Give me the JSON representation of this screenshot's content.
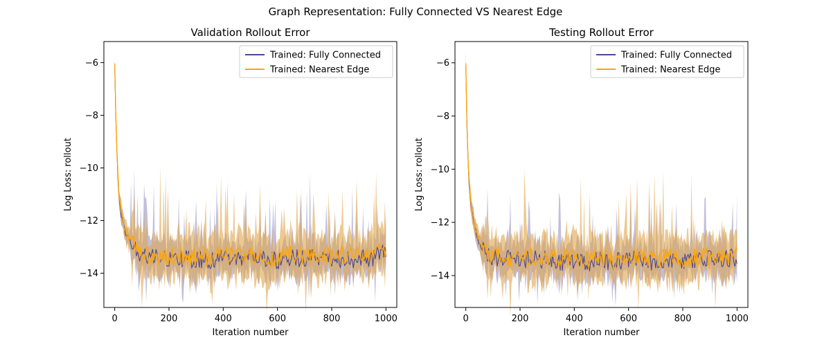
{
  "suptitle": "Graph Representation: Fully Connected VS Nearest Edge",
  "colors": {
    "fully_connected": "#4b4891",
    "nearest_edge": "#ffa500",
    "band_fully_connected": "#8c8ac2",
    "band_nearest_edge": "#e0a54a",
    "band_overlap": "#cd9d6a"
  },
  "chart_data": [
    {
      "type": "line",
      "title": "Validation Rollout Error",
      "xlabel": "Iteration number",
      "ylabel": "Log Loss: rollout",
      "xlim": [
        -40,
        1040
      ],
      "ylim": [
        -15.3,
        -5.2
      ],
      "xticks": [
        0,
        200,
        400,
        600,
        800,
        1000
      ],
      "yticks": [
        -14,
        -12,
        -10,
        -8,
        -6
      ],
      "grid": false,
      "legend": "top-right",
      "series": [
        {
          "name": "Trained: Fully Connected",
          "x": [
            0,
            5,
            10,
            15,
            20,
            30,
            40,
            50,
            60,
            80,
            100,
            120,
            140,
            160,
            180,
            200,
            250,
            300,
            350,
            400,
            450,
            500,
            550,
            600,
            650,
            700,
            750,
            800,
            850,
            900,
            950,
            1000
          ],
          "mean": [
            -6.2,
            -8.6,
            -10.0,
            -11.0,
            -11.5,
            -12.1,
            -12.5,
            -12.7,
            -12.9,
            -13.1,
            -13.3,
            -13.3,
            -13.4,
            -13.4,
            -13.4,
            -13.5,
            -13.4,
            -13.5,
            -13.5,
            -13.4,
            -13.5,
            -13.4,
            -13.5,
            -13.5,
            -13.4,
            -13.5,
            -13.4,
            -13.5,
            -13.4,
            -13.5,
            -13.4,
            -13.2
          ],
          "band_spread": 0.6
        },
        {
          "name": "Trained: Nearest Edge",
          "x": [
            0,
            5,
            10,
            15,
            20,
            30,
            40,
            50,
            60,
            80,
            100,
            120,
            140,
            160,
            180,
            200,
            250,
            300,
            350,
            400,
            450,
            500,
            550,
            600,
            650,
            700,
            750,
            800,
            850,
            900,
            950,
            1000
          ],
          "mean": [
            -6.1,
            -8.5,
            -9.9,
            -10.9,
            -11.4,
            -12.0,
            -12.4,
            -12.6,
            -12.8,
            -13.0,
            -13.2,
            -13.3,
            -13.3,
            -13.4,
            -13.4,
            -13.4,
            -13.4,
            -13.4,
            -13.4,
            -13.3,
            -13.4,
            -13.3,
            -13.4,
            -13.4,
            -13.3,
            -13.4,
            -13.3,
            -13.4,
            -13.3,
            -13.4,
            -13.3,
            -13.1
          ],
          "band_spread": 0.8
        }
      ]
    },
    {
      "type": "line",
      "title": "Testing Rollout Error",
      "xlabel": "Iteration number",
      "ylabel": "Log Loss: rollout",
      "xlim": [
        -40,
        1040
      ],
      "ylim": [
        -15.2,
        -5.2
      ],
      "xticks": [
        0,
        200,
        400,
        600,
        800,
        1000
      ],
      "yticks": [
        -14,
        -12,
        -10,
        -8,
        -6
      ],
      "grid": false,
      "legend": "top-right",
      "series": [
        {
          "name": "Trained: Fully Connected",
          "x": [
            0,
            5,
            10,
            15,
            20,
            30,
            40,
            50,
            60,
            80,
            100,
            120,
            140,
            160,
            180,
            200,
            250,
            300,
            350,
            400,
            450,
            500,
            550,
            600,
            650,
            700,
            750,
            800,
            850,
            900,
            950,
            1000
          ],
          "mean": [
            -6.2,
            -8.7,
            -10.1,
            -11.0,
            -11.5,
            -12.1,
            -12.5,
            -12.8,
            -13.0,
            -13.2,
            -13.3,
            -13.4,
            -13.4,
            -13.4,
            -13.4,
            -13.4,
            -13.4,
            -13.4,
            -13.5,
            -13.4,
            -13.5,
            -13.4,
            -13.5,
            -13.4,
            -13.4,
            -13.5,
            -13.4,
            -13.5,
            -13.4,
            -13.4,
            -13.4,
            -13.3
          ],
          "band_spread": 0.6
        },
        {
          "name": "Trained: Nearest Edge",
          "x": [
            0,
            5,
            10,
            15,
            20,
            30,
            40,
            50,
            60,
            80,
            100,
            120,
            140,
            160,
            180,
            200,
            250,
            300,
            350,
            400,
            450,
            500,
            550,
            600,
            650,
            700,
            750,
            800,
            850,
            900,
            950,
            1000
          ],
          "mean": [
            -6.1,
            -8.6,
            -10.0,
            -10.9,
            -11.4,
            -12.0,
            -12.4,
            -12.7,
            -12.9,
            -13.1,
            -13.2,
            -13.3,
            -13.3,
            -13.3,
            -13.3,
            -13.3,
            -13.3,
            -13.3,
            -13.4,
            -13.3,
            -13.4,
            -13.3,
            -13.4,
            -13.3,
            -13.3,
            -13.4,
            -13.3,
            -13.4,
            -13.3,
            -13.3,
            -13.3,
            -13.2
          ],
          "band_spread": 0.8
        }
      ]
    }
  ]
}
